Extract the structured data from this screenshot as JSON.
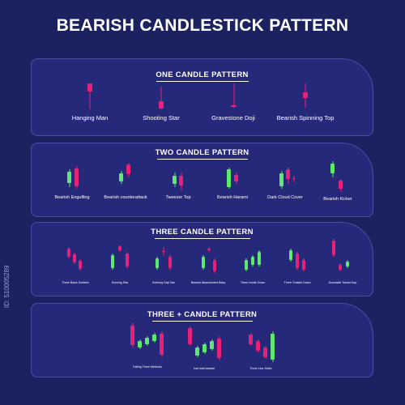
{
  "title": "BEARISH CANDLESTICK PATTERN",
  "colors": {
    "background": "#1c2160",
    "panel": "#26297a",
    "bear": "#e6217a",
    "bull": "#5fe86f"
  },
  "side_text": "ID: 510005289",
  "panels": [
    {
      "title": "ONE CANDLE PATTERN",
      "labels": [
        "Hanging Man",
        "Shooting Star",
        "Gravestone Doji",
        "Bearish Spinning Top"
      ]
    },
    {
      "title": "TWO CANDLE PATTERN",
      "labels": [
        "Bearish Engulfing",
        "Bearish counterattack",
        "Tweezer Top",
        "Bearish Harami",
        "Dark Cloud Cover",
        "Bearish Kicker"
      ]
    },
    {
      "title": "THREE  CANDLE PATTERN",
      "labels": [
        "Three Black Soldiers",
        "Evening Star",
        "Evening Doji Star",
        "Bearish Abandonded Baby",
        "Three Inside Down",
        "Three Outside Down",
        "Downside Tasuki Gap"
      ]
    },
    {
      "title": "THREE + CANDLE PATTERN",
      "labels": [
        "Falling Three Methods",
        "mat hold bearish",
        "Three Line Strike"
      ]
    }
  ]
}
